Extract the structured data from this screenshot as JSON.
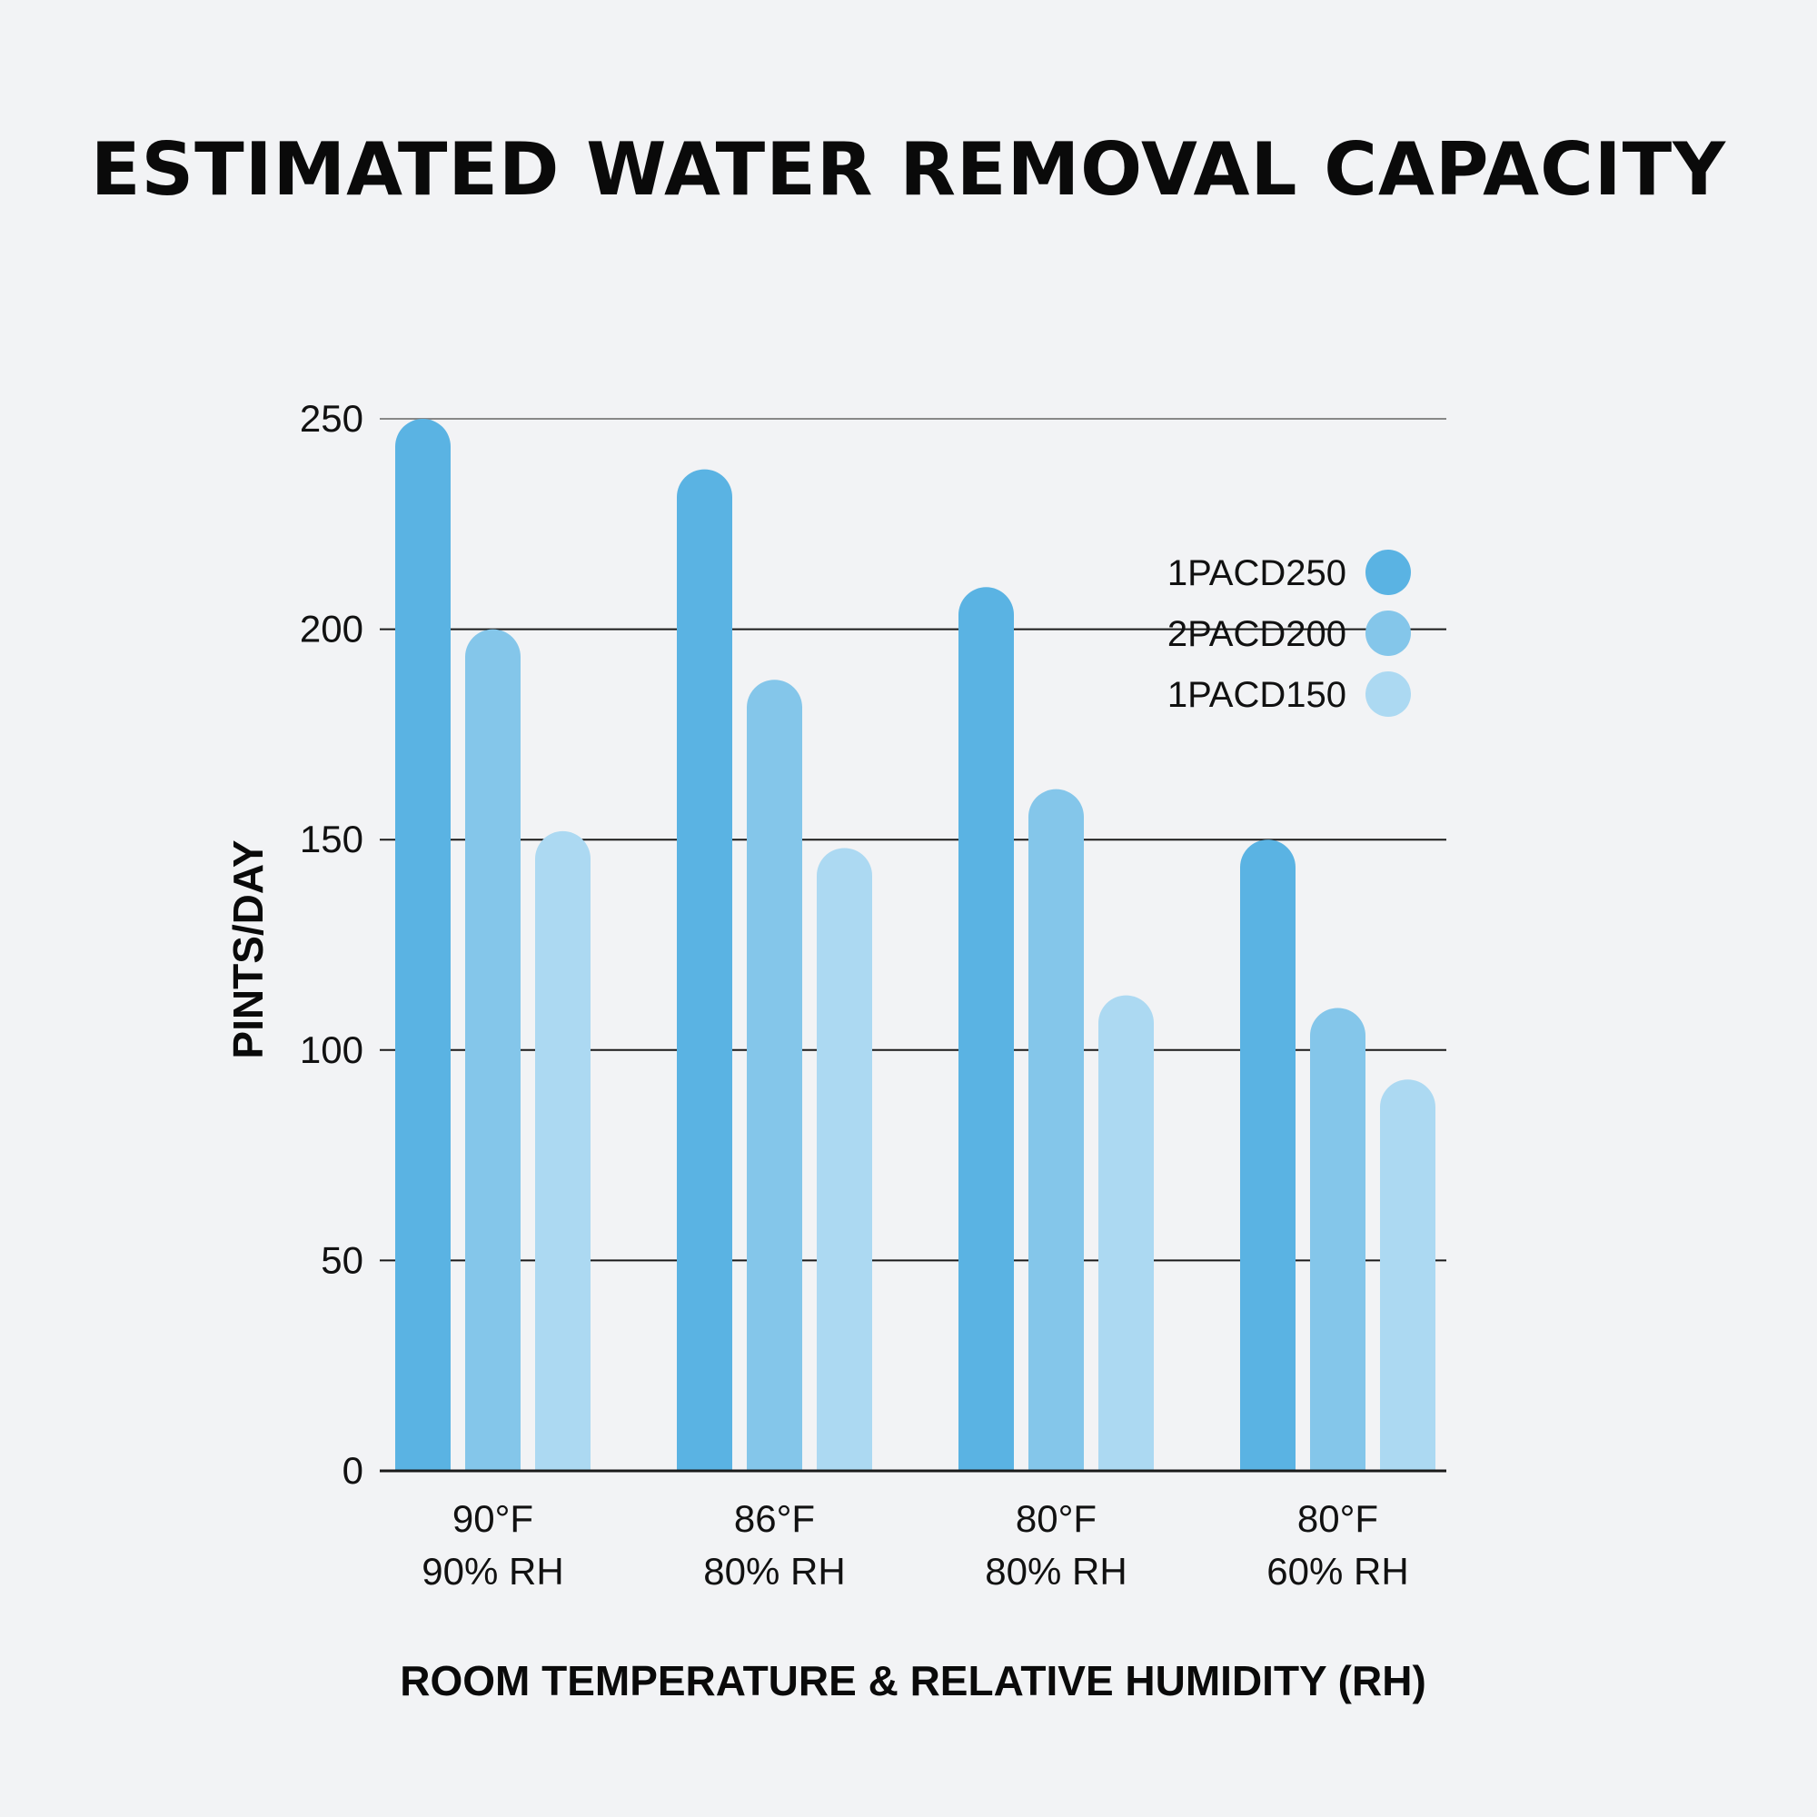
{
  "chart_data": {
    "type": "bar",
    "title": "ESTIMATED WATER REMOVAL CAPACITY",
    "xlabel": "ROOM TEMPERATURE & RELATIVE HUMIDITY (RH)",
    "ylabel": "PINTS/DAY",
    "ylim": [
      0,
      250
    ],
    "yticks": [
      0,
      50,
      100,
      150,
      200,
      250
    ],
    "grid": true,
    "legend_position": "top-right",
    "categories": [
      [
        "90°F",
        "90% RH"
      ],
      [
        "86°F",
        "80% RH"
      ],
      [
        "80°F",
        "80% RH"
      ],
      [
        "80°F",
        "60% RH"
      ]
    ],
    "series": [
      {
        "name": "1PACD250",
        "color": "#5ab3e3",
        "values": [
          250,
          238,
          210,
          150
        ]
      },
      {
        "name": "2PACD200",
        "color": "#84c6ea",
        "values": [
          200,
          188,
          162,
          110
        ]
      },
      {
        "name": "1PACD150",
        "color": "#acd9f2",
        "values": [
          152,
          148,
          113,
          93
        ]
      }
    ]
  }
}
